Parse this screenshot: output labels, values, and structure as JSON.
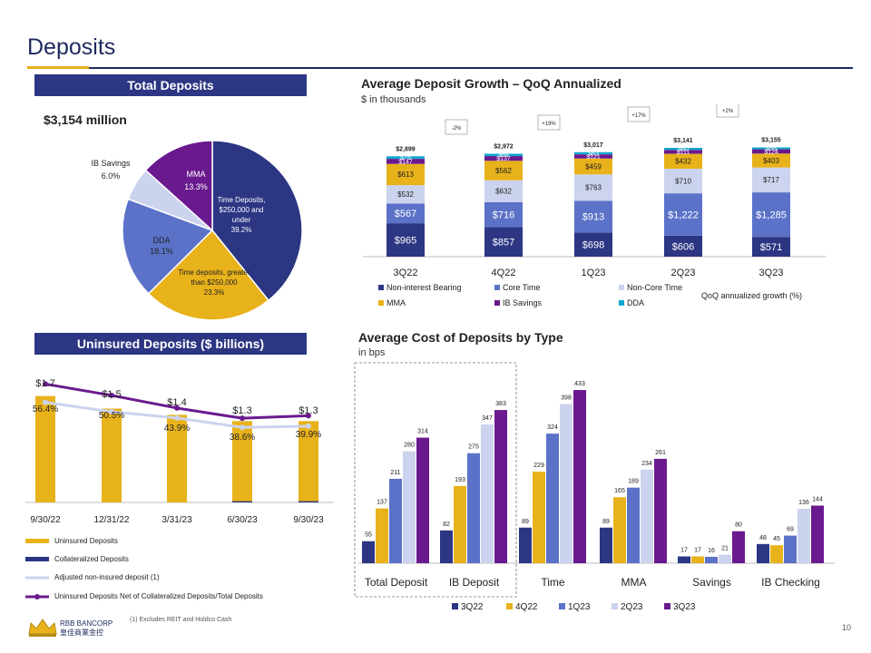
{
  "page": {
    "title": "Deposits",
    "page_number": "10",
    "footnote": "(1) Excludes REIT and Holdco Cash"
  },
  "logo": {
    "name": "RBB BANCORP",
    "chinese": "皇佳商業金控"
  },
  "colors": {
    "navy": "#2c3683",
    "gold": "#e8b21b",
    "blue": "#5b72c8",
    "lavender": "#ccd3ee",
    "purple": "#6a1a8e",
    "cyan": "#11a7cf"
  },
  "total_deposits": {
    "banner": "Total Deposits",
    "total_label": "$3,154 million",
    "chart_data": {
      "type": "pie",
      "slices": [
        {
          "label": "Time Deposits, $250,000  and under",
          "pct": 39.2,
          "pct_label": "39.2%",
          "color": "#2c3683"
        },
        {
          "label": "Time deposits, greater than $250,000",
          "pct": 23.3,
          "pct_label": "23.3%",
          "color": "#e8b21b"
        },
        {
          "label": "DDA",
          "pct": 18.1,
          "pct_label": "18.1%",
          "color": "#5b72c8"
        },
        {
          "label": "IB Savings",
          "pct": 6.0,
          "pct_label": "6.0%",
          "color": "#ccd3ee"
        },
        {
          "label": "MMA",
          "pct": 13.3,
          "pct_label": "13.3%",
          "color": "#6a1a8e"
        }
      ]
    }
  },
  "avg_growth": {
    "title": "Average Deposit Growth – QoQ Annualized",
    "subtitle": "$ in thousands",
    "qoq_legend": "QoQ annualized growth (%)",
    "chart_data": {
      "type": "bar",
      "stacked": true,
      "categories": [
        "3Q22",
        "4Q22",
        "1Q23",
        "2Q23",
        "3Q23"
      ],
      "totals": [
        "$2,899",
        "$2,972",
        "$3,017",
        "$3,141",
        "$3,155"
      ],
      "qoq_growth": [
        "-2%",
        "+19%",
        "+17%",
        "+2%"
      ],
      "series": [
        {
          "name": "Non-interest Bearing",
          "color": "#2c3683",
          "values": [
            965,
            857,
            698,
            606,
            571
          ],
          "labels": [
            "$965",
            "$857",
            "$698",
            "$606",
            "$571"
          ]
        },
        {
          "name": "Core Time",
          "color": "#5b72c8",
          "values": [
            567,
            716,
            913,
            1222,
            1285
          ],
          "labels": [
            "$567",
            "$716",
            "$913",
            "$1,222",
            "$1,285"
          ]
        },
        {
          "name": "Non-Core Time",
          "color": "#ccd3ee",
          "values": [
            532,
            632,
            763,
            710,
            717
          ],
          "labels": [
            "$532",
            "$632",
            "$763",
            "$710",
            "$717"
          ]
        },
        {
          "name": "MMA",
          "color": "#e8b21b",
          "values": [
            613,
            562,
            459,
            432,
            403
          ],
          "labels": [
            "$613",
            "$562",
            "$459",
            "$432",
            "$403"
          ]
        },
        {
          "name": "IB Savings",
          "color": "#6a1a8e",
          "values": [
            147,
            137,
            121,
            111,
            124
          ],
          "labels": [
            "$147",
            "$137",
            "$121",
            "$111",
            "$124"
          ]
        },
        {
          "name": "DDA",
          "color": "#11a7cf",
          "values": [
            75,
            68,
            63,
            60,
            55
          ],
          "labels": [
            "$75",
            "$68",
            "$63",
            "$60",
            "$55"
          ]
        }
      ]
    }
  },
  "uninsured": {
    "banner": "Uninsured Deposits ($ billions)",
    "chart_data": {
      "type": "bar",
      "categories": [
        "9/30/22",
        "12/31/22",
        "3/31/23",
        "6/30/23",
        "9/30/23"
      ],
      "bar_series": [
        {
          "name": "Uninsured Deposits",
          "color": "#e8b21b",
          "values": [
            1.7,
            1.5,
            1.4,
            1.3,
            1.3
          ],
          "labels": [
            "$1.7",
            "$1.5",
            "$1.4",
            "$1.3",
            "$1.3"
          ]
        },
        {
          "name": "Collateralized Deposits",
          "color": "#2c3683",
          "values": [
            0.0,
            0.0,
            0.0,
            0.02,
            0.02
          ]
        }
      ],
      "line_series": [
        {
          "name": "Adjusted non-insured deposit (1)",
          "color": "#ccd3ee",
          "values": [
            1.6,
            1.45,
            1.35,
            1.2,
            1.22
          ]
        },
        {
          "name": "Uninsured Deposits Net of Collateralized Deposits/Total Deposits",
          "color": "#6a1a8e",
          "values": [
            56.4,
            50.5,
            43.9,
            38.6,
            39.9
          ],
          "labels": [
            "56.4%",
            "50.5%",
            "43.9%",
            "38.6%",
            "39.9%"
          ]
        }
      ]
    }
  },
  "cost": {
    "title": "Average Cost of Deposits by Type",
    "subtitle": "in bps",
    "chart_data": {
      "type": "bar",
      "categories": [
        "Total Deposit",
        "IB Deposit",
        "Time",
        "MMA",
        "Savings",
        "IB Checking"
      ],
      "series": [
        {
          "name": "3Q22",
          "color": "#2c3683",
          "values": [
            55,
            82,
            89,
            89,
            17,
            48
          ]
        },
        {
          "name": "4Q22",
          "color": "#e8b21b",
          "values": [
            137,
            193,
            229,
            165,
            17,
            45
          ]
        },
        {
          "name": "1Q23",
          "color": "#5b72c8",
          "values": [
            211,
            275,
            324,
            189,
            16,
            69
          ]
        },
        {
          "name": "2Q23",
          "color": "#ccd3ee",
          "values": [
            280,
            347,
            398,
            234,
            21,
            136
          ]
        },
        {
          "name": "3Q23",
          "color": "#6a1a8e",
          "values": [
            314,
            383,
            433,
            261,
            80,
            144
          ]
        }
      ]
    }
  }
}
